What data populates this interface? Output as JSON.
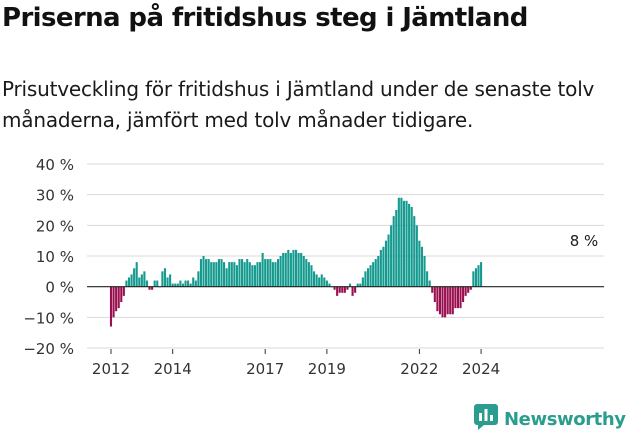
{
  "header": {
    "title": "Priserna på fritidshus steg i Jämtland",
    "subtitle": "Prisutveckling för fritidshus i Jämtland under de senaste tolv månaderna, jämfört med tolv månader tidigare."
  },
  "brand": {
    "name": "Newsworthy"
  },
  "colors": {
    "positive": "#159a8f",
    "negative": "#9a0f4f",
    "grid": "#d9d9d9",
    "zero_line": "#222222"
  },
  "chart_data": {
    "type": "bar",
    "x_start": "2012-01",
    "x_step": "month",
    "y_unit": "%",
    "ylim": [
      -20,
      40
    ],
    "y_ticks": [
      40,
      30,
      20,
      10,
      0,
      -10,
      -20
    ],
    "y_tick_labels": [
      "40 %",
      "30 %",
      "20 %",
      "10 %",
      "0 %",
      "−10 %",
      "−20 %"
    ],
    "x_tick_labels": [
      {
        "label": "2012",
        "at": "2012-01"
      },
      {
        "label": "2014",
        "at": "2014-01"
      },
      {
        "label": "2017",
        "at": "2017-01"
      },
      {
        "label": "2019",
        "at": "2019-01"
      },
      {
        "label": "2022",
        "at": "2022-01"
      },
      {
        "label": "2024",
        "at": "2024-01"
      }
    ],
    "annotation": "8 %",
    "grid": true,
    "values": [
      -13,
      -10,
      -8,
      -7,
      -5,
      -3,
      2,
      3,
      4,
      6,
      8,
      3,
      4,
      5,
      2,
      -1,
      -1,
      2,
      2,
      0,
      5,
      6,
      3,
      4,
      1,
      1,
      1,
      2,
      1,
      2,
      2,
      1,
      3,
      2,
      5,
      9,
      10,
      9,
      9,
      8,
      8,
      8,
      9,
      9,
      8,
      6,
      8,
      8,
      8,
      7,
      9,
      9,
      8,
      9,
      8,
      7,
      7,
      8,
      8,
      11,
      9,
      9,
      9,
      8,
      8,
      9,
      10,
      11,
      11,
      12,
      11,
      12,
      12,
      11,
      11,
      10,
      9,
      8,
      7,
      5,
      4,
      3,
      4,
      3,
      2,
      1,
      0,
      -1,
      -3,
      -2,
      -2,
      -2,
      -1,
      1,
      -3,
      -2,
      1,
      1,
      3,
      5,
      6,
      7,
      8,
      9,
      10,
      12,
      13,
      15,
      17,
      20,
      23,
      25,
      29,
      29,
      28,
      28,
      27,
      26,
      23,
      20,
      15,
      13,
      10,
      5,
      2,
      -2,
      -5,
      -8,
      -9,
      -10,
      -10,
      -9,
      -9,
      -9,
      -7,
      -7,
      -7,
      -5,
      -3,
      -2,
      -1,
      5,
      6,
      7,
      8
    ]
  }
}
